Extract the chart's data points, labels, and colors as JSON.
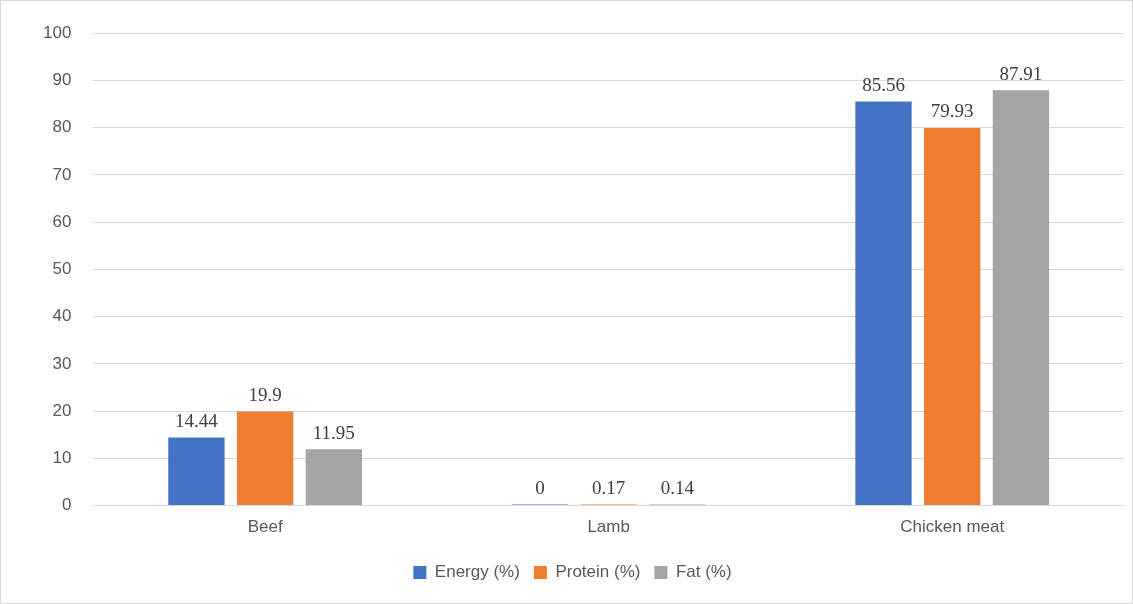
{
  "chart_data": {
    "type": "bar",
    "categories": [
      "Beef",
      "Lamb",
      "Chicken meat"
    ],
    "series": [
      {
        "name": "Energy (%)",
        "color": "#4472c4",
        "values": [
          14.44,
          0,
          85.56
        ]
      },
      {
        "name": "Protein (%)",
        "color": "#ed7d31",
        "values": [
          19.9,
          0.17,
          79.93
        ]
      },
      {
        "name": "Fat (%)",
        "color": "#a5a5a5",
        "values": [
          11.95,
          0.14,
          87.91
        ]
      }
    ],
    "ylim": [
      0,
      100
    ],
    "yticks": [
      0,
      10,
      20,
      30,
      40,
      50,
      60,
      70,
      80,
      90,
      100
    ],
    "grid": "y",
    "legend": "bottom",
    "data_labels": true
  }
}
